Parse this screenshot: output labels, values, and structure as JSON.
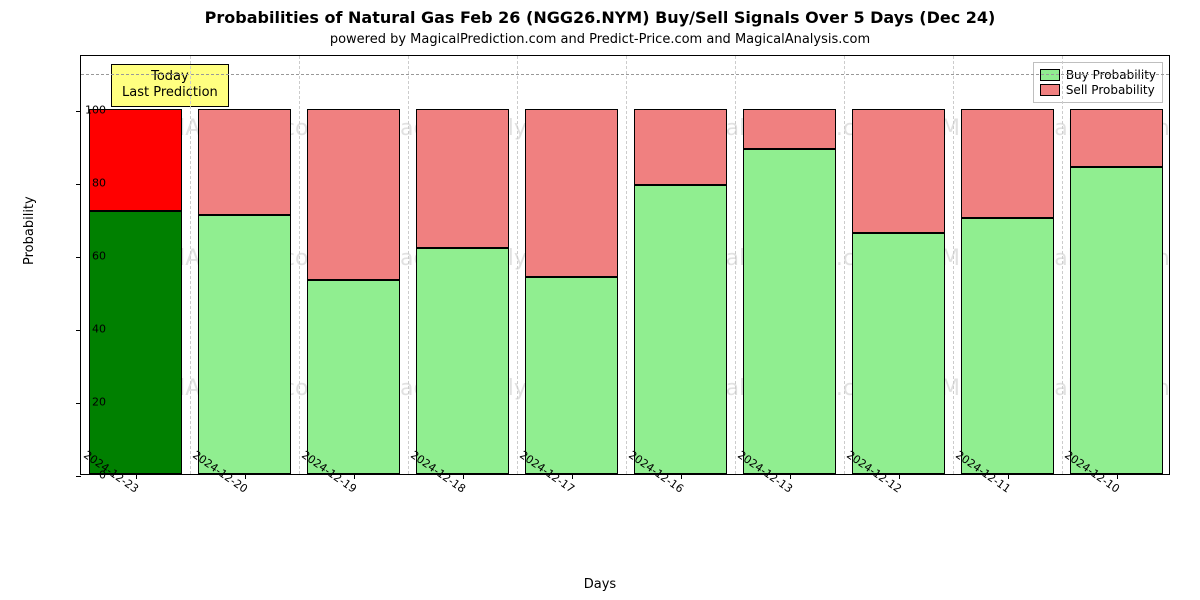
{
  "chart": {
    "type": "stacked-bar",
    "title": "Probabilities of Natural Gas Feb 26 (NGG26.NYM) Buy/Sell Signals Over 5 Days (Dec 24)",
    "subtitle": "powered by MagicalPrediction.com and Predict-Price.com and MagicalAnalysis.com",
    "xlabel": "Days",
    "ylabel": "Probability",
    "title_fontsize": 16,
    "subtitle_fontsize": 13,
    "label_fontsize": 13,
    "tick_fontsize": 11,
    "background_color": "#ffffff",
    "border_color": "#000000",
    "grid_color": "#999999",
    "ylim": [
      0,
      115
    ],
    "yticks": [
      0,
      20,
      40,
      60,
      80,
      100
    ],
    "categories": [
      "2024-12-23",
      "2024-12-20",
      "2024-12-19",
      "2024-12-18",
      "2024-12-17",
      "2024-12-16",
      "2024-12-13",
      "2024-12-12",
      "2024-12-11",
      "2024-12-10"
    ],
    "buy_values": [
      72,
      71,
      53,
      62,
      54,
      79,
      89,
      66,
      70,
      84
    ],
    "sell_values": [
      28,
      29,
      47,
      38,
      46,
      21,
      11,
      34,
      30,
      16
    ],
    "buy_colors": [
      "#008000",
      "#90ee90",
      "#90ee90",
      "#90ee90",
      "#90ee90",
      "#90ee90",
      "#90ee90",
      "#90ee90",
      "#90ee90",
      "#90ee90"
    ],
    "sell_colors": [
      "#ff0000",
      "#f08080",
      "#f08080",
      "#f08080",
      "#f08080",
      "#f08080",
      "#f08080",
      "#f08080",
      "#f08080",
      "#f08080"
    ],
    "bar_width_ratio": 0.85,
    "bar_gap_ratio": 0.15,
    "bar_border_color": "#000000",
    "annotation": {
      "line1": "Today",
      "line2": "Last Prediction",
      "bg_color": "#ffff80",
      "border_color": "#000000"
    },
    "legend": {
      "buy_label": "Buy Probability",
      "sell_label": "Sell Probability",
      "buy_swatch": "#90ee90",
      "sell_swatch": "#f08080",
      "border_color": "#bfbfbf"
    },
    "watermark_text": "MagicalAnalysis.com",
    "watermark_color": "rgba(128,128,128,0.24)",
    "dash_line_y": 110
  }
}
